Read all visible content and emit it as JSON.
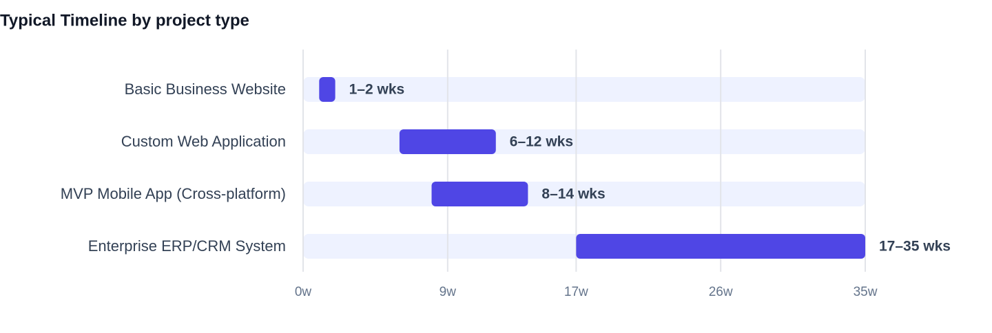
{
  "chart_data": {
    "type": "range-bar",
    "title": "Typical Timeline by project type",
    "categories": [
      "Basic Business Website",
      "Custom Web Application",
      "MVP Mobile App (Cross-platform)",
      "Enterprise ERP/CRM System"
    ],
    "start": [
      1,
      6,
      8,
      17
    ],
    "end": [
      2,
      12,
      14,
      35
    ],
    "value_labels": [
      "1–2 wks",
      "6–12 wks",
      "8–14 wks",
      "17–35 wks"
    ],
    "color": "#4f46e5",
    "xlim": [
      0,
      35
    ],
    "xticks": [
      {
        "value": 0,
        "label": "0w"
      },
      {
        "value": 9,
        "label": "9w"
      },
      {
        "value": 17,
        "label": "17w"
      },
      {
        "value": 26,
        "label": "26w"
      },
      {
        "value": 35,
        "label": "35w"
      }
    ],
    "grid": true
  }
}
